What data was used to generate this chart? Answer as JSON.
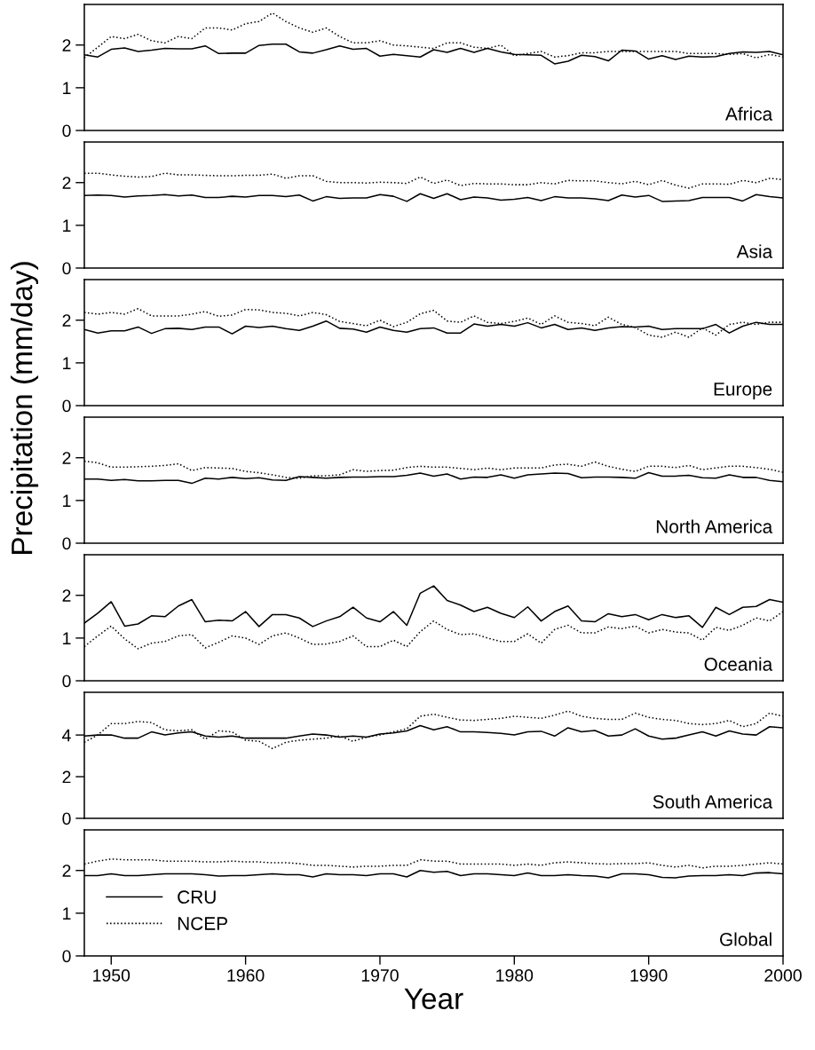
{
  "chart_data": [
    {
      "type": "line",
      "title": "Africa",
      "x": [
        1948,
        1949,
        1950,
        1951,
        1952,
        1953,
        1954,
        1955,
        1956,
        1957,
        1958,
        1959,
        1960,
        1961,
        1962,
        1963,
        1964,
        1965,
        1966,
        1967,
        1968,
        1969,
        1970,
        1971,
        1972,
        1973,
        1974,
        1975,
        1976,
        1977,
        1978,
        1979,
        1980,
        1981,
        1982,
        1983,
        1984,
        1985,
        1986,
        1987,
        1988,
        1989,
        1990,
        1991,
        1992,
        1993,
        1994,
        1995,
        1996,
        1997,
        1998,
        1999,
        2000
      ],
      "xlim": [
        1948,
        2000
      ],
      "ylim": [
        0,
        2.95
      ],
      "yticks": [
        0,
        1,
        2
      ],
      "tick_labels": "y",
      "series": [
        {
          "color": "#000000",
          "line_style": "solid",
          "values": [
            1.77,
            1.72,
            1.9,
            1.93,
            1.85,
            1.88,
            1.92,
            1.91,
            1.91,
            1.98,
            1.8,
            1.81,
            1.81,
            1.99,
            2.02,
            2.02,
            1.84,
            1.81,
            1.89,
            1.98,
            1.9,
            1.92,
            1.74,
            1.78,
            1.75,
            1.72,
            1.89,
            1.83,
            1.92,
            1.83,
            1.92,
            1.84,
            1.78,
            1.77,
            1.76,
            1.56,
            1.62,
            1.76,
            1.73,
            1.63,
            1.88,
            1.86,
            1.67,
            1.75,
            1.66,
            1.74,
            1.72,
            1.73,
            1.8,
            1.84,
            1.83,
            1.85,
            1.77
          ]
        },
        {
          "color": "#000000",
          "line_style": "dotted",
          "values": [
            1.7,
            1.95,
            2.2,
            2.15,
            2.25,
            2.1,
            2.05,
            2.2,
            2.15,
            2.4,
            2.4,
            2.35,
            2.5,
            2.55,
            2.75,
            2.55,
            2.4,
            2.3,
            2.4,
            2.2,
            2.05,
            2.05,
            2.1,
            2.0,
            1.98,
            1.95,
            1.92,
            2.05,
            2.05,
            1.95,
            1.92,
            2.0,
            1.75,
            1.8,
            1.85,
            1.72,
            1.75,
            1.82,
            1.82,
            1.85,
            1.85,
            1.85,
            1.85,
            1.85,
            1.85,
            1.8,
            1.8,
            1.8,
            1.78,
            1.8,
            1.7,
            1.78,
            1.72
          ]
        }
      ]
    },
    {
      "type": "line",
      "title": "Asia",
      "x": [
        1948,
        1949,
        1950,
        1951,
        1952,
        1953,
        1954,
        1955,
        1956,
        1957,
        1958,
        1959,
        1960,
        1961,
        1962,
        1963,
        1964,
        1965,
        1966,
        1967,
        1968,
        1969,
        1970,
        1971,
        1972,
        1973,
        1974,
        1975,
        1976,
        1977,
        1978,
        1979,
        1980,
        1981,
        1982,
        1983,
        1984,
        1985,
        1986,
        1987,
        1988,
        1989,
        1990,
        1991,
        1992,
        1993,
        1994,
        1995,
        1996,
        1997,
        1998,
        1999,
        2000
      ],
      "xlim": [
        1948,
        2000
      ],
      "ylim": [
        0,
        2.95
      ],
      "yticks": [
        0,
        1,
        2
      ],
      "tick_labels": "y",
      "series": [
        {
          "color": "#000000",
          "line_style": "solid",
          "values": [
            1.7,
            1.71,
            1.7,
            1.66,
            1.69,
            1.7,
            1.72,
            1.69,
            1.71,
            1.65,
            1.65,
            1.68,
            1.66,
            1.7,
            1.7,
            1.67,
            1.71,
            1.57,
            1.67,
            1.63,
            1.64,
            1.64,
            1.72,
            1.68,
            1.56,
            1.74,
            1.63,
            1.74,
            1.6,
            1.66,
            1.64,
            1.59,
            1.61,
            1.65,
            1.58,
            1.67,
            1.64,
            1.64,
            1.62,
            1.58,
            1.71,
            1.66,
            1.7,
            1.56,
            1.57,
            1.58,
            1.65,
            1.65,
            1.65,
            1.57,
            1.72,
            1.67,
            1.64
          ]
        },
        {
          "color": "#000000",
          "line_style": "dotted",
          "values": [
            2.22,
            2.22,
            2.18,
            2.15,
            2.13,
            2.14,
            2.22,
            2.18,
            2.18,
            2.17,
            2.16,
            2.16,
            2.17,
            2.17,
            2.2,
            2.1,
            2.16,
            2.16,
            2.03,
            2.0,
            2.0,
            1.99,
            2.01,
            2.0,
            1.98,
            2.13,
            1.98,
            2.06,
            1.93,
            1.98,
            1.97,
            1.97,
            1.95,
            1.95,
            2.0,
            1.97,
            2.05,
            2.04,
            2.04,
            2.0,
            1.97,
            2.03,
            1.95,
            2.05,
            1.94,
            1.87,
            1.97,
            1.97,
            1.96,
            2.05,
            2.0,
            2.1,
            2.07
          ]
        }
      ]
    },
    {
      "type": "line",
      "title": "Europe",
      "x": [
        1948,
        1949,
        1950,
        1951,
        1952,
        1953,
        1954,
        1955,
        1956,
        1957,
        1958,
        1959,
        1960,
        1961,
        1962,
        1963,
        1964,
        1965,
        1966,
        1967,
        1968,
        1969,
        1970,
        1971,
        1972,
        1973,
        1974,
        1975,
        1976,
        1977,
        1978,
        1979,
        1980,
        1981,
        1982,
        1983,
        1984,
        1985,
        1986,
        1987,
        1988,
        1989,
        1990,
        1991,
        1992,
        1993,
        1994,
        1995,
        1996,
        1997,
        1998,
        1999,
        2000
      ],
      "xlim": [
        1948,
        2000
      ],
      "ylim": [
        0,
        2.95
      ],
      "yticks": [
        0,
        1,
        2
      ],
      "tick_labels": "y",
      "series": [
        {
          "color": "#000000",
          "line_style": "solid",
          "values": [
            1.78,
            1.7,
            1.75,
            1.75,
            1.84,
            1.69,
            1.8,
            1.81,
            1.78,
            1.84,
            1.84,
            1.68,
            1.86,
            1.83,
            1.86,
            1.8,
            1.76,
            1.86,
            1.98,
            1.81,
            1.79,
            1.72,
            1.84,
            1.76,
            1.72,
            1.8,
            1.82,
            1.7,
            1.7,
            1.91,
            1.86,
            1.9,
            1.86,
            1.94,
            1.82,
            1.9,
            1.78,
            1.82,
            1.76,
            1.82,
            1.85,
            1.84,
            1.86,
            1.78,
            1.8,
            1.8,
            1.8,
            1.9,
            1.7,
            1.86,
            1.95,
            1.9,
            1.9
          ]
        },
        {
          "color": "#000000",
          "line_style": "dotted",
          "values": [
            2.18,
            2.14,
            2.18,
            2.14,
            2.27,
            2.1,
            2.1,
            2.1,
            2.14,
            2.2,
            2.09,
            2.12,
            2.25,
            2.24,
            2.18,
            2.16,
            2.1,
            2.18,
            2.13,
            1.97,
            1.92,
            1.87,
            2.0,
            1.85,
            1.95,
            2.15,
            2.23,
            1.98,
            1.95,
            2.1,
            1.95,
            1.92,
            1.97,
            2.05,
            1.9,
            2.1,
            1.95,
            1.92,
            1.87,
            2.07,
            1.9,
            1.83,
            1.65,
            1.6,
            1.72,
            1.6,
            1.82,
            1.65,
            1.9,
            1.95,
            1.9,
            1.95,
            1.95
          ]
        }
      ]
    },
    {
      "type": "line",
      "title": "North America",
      "ylabel": "Precipitation (mm/day)",
      "x": [
        1948,
        1949,
        1950,
        1951,
        1952,
        1953,
        1954,
        1955,
        1956,
        1957,
        1958,
        1959,
        1960,
        1961,
        1962,
        1963,
        1964,
        1965,
        1966,
        1967,
        1968,
        1969,
        1970,
        1971,
        1972,
        1973,
        1974,
        1975,
        1976,
        1977,
        1978,
        1979,
        1980,
        1981,
        1982,
        1983,
        1984,
        1985,
        1986,
        1987,
        1988,
        1989,
        1990,
        1991,
        1992,
        1993,
        1994,
        1995,
        1996,
        1997,
        1998,
        1999,
        2000
      ],
      "xlim": [
        1948,
        2000
      ],
      "ylim": [
        0,
        2.95
      ],
      "yticks": [
        0,
        1,
        2
      ],
      "tick_labels": "y",
      "series": [
        {
          "color": "#000000",
          "line_style": "solid",
          "values": [
            1.5,
            1.5,
            1.47,
            1.49,
            1.46,
            1.46,
            1.47,
            1.47,
            1.4,
            1.52,
            1.5,
            1.54,
            1.51,
            1.53,
            1.48,
            1.47,
            1.56,
            1.54,
            1.52,
            1.54,
            1.55,
            1.55,
            1.56,
            1.56,
            1.59,
            1.64,
            1.57,
            1.62,
            1.5,
            1.55,
            1.54,
            1.6,
            1.52,
            1.6,
            1.62,
            1.64,
            1.63,
            1.53,
            1.55,
            1.55,
            1.54,
            1.52,
            1.65,
            1.57,
            1.57,
            1.59,
            1.53,
            1.52,
            1.6,
            1.54,
            1.54,
            1.47,
            1.44
          ]
        },
        {
          "color": "#000000",
          "line_style": "dotted",
          "values": [
            1.92,
            1.88,
            1.78,
            1.78,
            1.79,
            1.8,
            1.82,
            1.86,
            1.7,
            1.77,
            1.76,
            1.75,
            1.68,
            1.65,
            1.6,
            1.54,
            1.52,
            1.58,
            1.58,
            1.6,
            1.72,
            1.68,
            1.7,
            1.71,
            1.77,
            1.8,
            1.78,
            1.78,
            1.75,
            1.72,
            1.76,
            1.72,
            1.76,
            1.76,
            1.76,
            1.83,
            1.85,
            1.8,
            1.9,
            1.8,
            1.73,
            1.68,
            1.8,
            1.8,
            1.77,
            1.82,
            1.72,
            1.76,
            1.8,
            1.8,
            1.77,
            1.73,
            1.66
          ]
        }
      ]
    },
    {
      "type": "line",
      "title": "Oceania",
      "x": [
        1948,
        1949,
        1950,
        1951,
        1952,
        1953,
        1954,
        1955,
        1956,
        1957,
        1958,
        1959,
        1960,
        1961,
        1962,
        1963,
        1964,
        1965,
        1966,
        1967,
        1968,
        1969,
        1970,
        1971,
        1972,
        1973,
        1974,
        1975,
        1976,
        1977,
        1978,
        1979,
        1980,
        1981,
        1982,
        1983,
        1984,
        1985,
        1986,
        1987,
        1988,
        1989,
        1990,
        1991,
        1992,
        1993,
        1994,
        1995,
        1996,
        1997,
        1998,
        1999,
        2000
      ],
      "xlim": [
        1948,
        2000
      ],
      "ylim": [
        0,
        2.95
      ],
      "yticks": [
        0,
        1,
        2
      ],
      "tick_labels": "y",
      "series": [
        {
          "color": "#000000",
          "line_style": "solid",
          "values": [
            1.35,
            1.58,
            1.85,
            1.28,
            1.33,
            1.52,
            1.5,
            1.75,
            1.9,
            1.38,
            1.42,
            1.4,
            1.62,
            1.27,
            1.55,
            1.55,
            1.47,
            1.27,
            1.4,
            1.5,
            1.72,
            1.47,
            1.38,
            1.62,
            1.3,
            2.05,
            2.22,
            1.88,
            1.77,
            1.62,
            1.72,
            1.58,
            1.48,
            1.73,
            1.4,
            1.62,
            1.75,
            1.4,
            1.38,
            1.57,
            1.5,
            1.55,
            1.43,
            1.55,
            1.48,
            1.52,
            1.25,
            1.72,
            1.55,
            1.72,
            1.74,
            1.9,
            1.84
          ]
        },
        {
          "color": "#000000",
          "line_style": "dotted",
          "values": [
            0.8,
            1.05,
            1.28,
            0.98,
            0.75,
            0.88,
            0.92,
            1.05,
            1.08,
            0.77,
            0.9,
            1.05,
            1.0,
            0.85,
            1.05,
            1.12,
            1.0,
            0.85,
            0.86,
            0.92,
            1.05,
            0.8,
            0.8,
            0.95,
            0.8,
            1.15,
            1.4,
            1.2,
            1.08,
            1.1,
            1.0,
            0.92,
            0.92,
            1.1,
            0.88,
            1.2,
            1.3,
            1.12,
            1.12,
            1.26,
            1.22,
            1.28,
            1.12,
            1.2,
            1.14,
            1.12,
            0.95,
            1.25,
            1.18,
            1.3,
            1.47,
            1.4,
            1.62
          ]
        }
      ]
    },
    {
      "type": "line",
      "title": "South America",
      "x": [
        1948,
        1949,
        1950,
        1951,
        1952,
        1953,
        1954,
        1955,
        1956,
        1957,
        1958,
        1959,
        1960,
        1961,
        1962,
        1963,
        1964,
        1965,
        1966,
        1967,
        1968,
        1969,
        1970,
        1971,
        1972,
        1973,
        1974,
        1975,
        1976,
        1977,
        1978,
        1979,
        1980,
        1981,
        1982,
        1983,
        1984,
        1985,
        1986,
        1987,
        1988,
        1989,
        1990,
        1991,
        1992,
        1993,
        1994,
        1995,
        1996,
        1997,
        1998,
        1999,
        2000
      ],
      "xlim": [
        1948,
        2000
      ],
      "ylim": [
        0,
        6.05
      ],
      "yticks": [
        0,
        2,
        4
      ],
      "tick_labels": "y",
      "series": [
        {
          "color": "#000000",
          "line_style": "solid",
          "values": [
            3.95,
            4.0,
            4.0,
            3.85,
            3.85,
            4.15,
            4.0,
            4.1,
            4.15,
            3.95,
            3.9,
            3.95,
            3.85,
            3.85,
            3.85,
            3.85,
            3.95,
            4.05,
            4.0,
            3.9,
            3.95,
            3.9,
            4.05,
            4.1,
            4.2,
            4.45,
            4.25,
            4.4,
            4.15,
            4.15,
            4.12,
            4.08,
            4.0,
            4.15,
            4.18,
            3.95,
            4.35,
            4.15,
            4.22,
            3.95,
            4.0,
            4.3,
            3.95,
            3.8,
            3.85,
            4.0,
            4.15,
            3.95,
            4.2,
            4.05,
            4.0,
            4.4,
            4.35
          ]
        },
        {
          "color": "#000000",
          "line_style": "dotted",
          "values": [
            3.65,
            4.0,
            4.55,
            4.55,
            4.65,
            4.6,
            4.25,
            4.2,
            4.25,
            3.8,
            4.2,
            4.15,
            3.75,
            3.7,
            3.35,
            3.65,
            3.75,
            3.8,
            3.85,
            3.95,
            3.7,
            3.9,
            4.0,
            4.15,
            4.3,
            4.9,
            5.0,
            4.85,
            4.72,
            4.7,
            4.75,
            4.8,
            4.9,
            4.85,
            4.8,
            4.95,
            5.15,
            4.9,
            4.8,
            4.75,
            4.75,
            5.05,
            4.85,
            4.75,
            4.7,
            4.55,
            4.5,
            4.55,
            4.7,
            4.4,
            4.55,
            5.05,
            4.9
          ]
        }
      ]
    },
    {
      "type": "line",
      "title": "Global",
      "xlabel": "Year",
      "x": [
        1948,
        1949,
        1950,
        1951,
        1952,
        1953,
        1954,
        1955,
        1956,
        1957,
        1958,
        1959,
        1960,
        1961,
        1962,
        1963,
        1964,
        1965,
        1966,
        1967,
        1968,
        1969,
        1970,
        1971,
        1972,
        1973,
        1974,
        1975,
        1976,
        1977,
        1978,
        1979,
        1980,
        1981,
        1982,
        1983,
        1984,
        1985,
        1986,
        1987,
        1988,
        1989,
        1990,
        1991,
        1992,
        1993,
        1994,
        1995,
        1996,
        1997,
        1998,
        1999,
        2000
      ],
      "xlim": [
        1948,
        2000
      ],
      "xticks": [
        1950,
        1960,
        1970,
        1980,
        1990,
        2000
      ],
      "ylim": [
        0,
        2.95
      ],
      "yticks": [
        0,
        1,
        2
      ],
      "legend": "bottom left",
      "series": [
        {
          "name": "CRU",
          "color": "#000000",
          "line_style": "solid",
          "values": [
            1.88,
            1.88,
            1.92,
            1.88,
            1.88,
            1.9,
            1.92,
            1.92,
            1.92,
            1.9,
            1.87,
            1.88,
            1.88,
            1.9,
            1.92,
            1.9,
            1.9,
            1.85,
            1.92,
            1.9,
            1.9,
            1.88,
            1.92,
            1.92,
            1.85,
            2.0,
            1.96,
            1.98,
            1.88,
            1.92,
            1.92,
            1.9,
            1.88,
            1.94,
            1.88,
            1.88,
            1.9,
            1.88,
            1.87,
            1.83,
            1.92,
            1.92,
            1.9,
            1.84,
            1.83,
            1.87,
            1.88,
            1.88,
            1.9,
            1.88,
            1.94,
            1.95,
            1.92
          ]
        },
        {
          "name": "NCEP",
          "color": "#000000",
          "line_style": "dotted",
          "values": [
            2.15,
            2.22,
            2.27,
            2.25,
            2.25,
            2.25,
            2.22,
            2.22,
            2.22,
            2.2,
            2.2,
            2.22,
            2.2,
            2.2,
            2.18,
            2.18,
            2.16,
            2.12,
            2.12,
            2.1,
            2.08,
            2.1,
            2.1,
            2.12,
            2.12,
            2.25,
            2.22,
            2.22,
            2.15,
            2.15,
            2.15,
            2.15,
            2.12,
            2.15,
            2.12,
            2.18,
            2.2,
            2.18,
            2.16,
            2.15,
            2.16,
            2.16,
            2.18,
            2.12,
            2.08,
            2.12,
            2.06,
            2.1,
            2.1,
            2.12,
            2.15,
            2.18,
            2.15
          ]
        }
      ]
    }
  ]
}
